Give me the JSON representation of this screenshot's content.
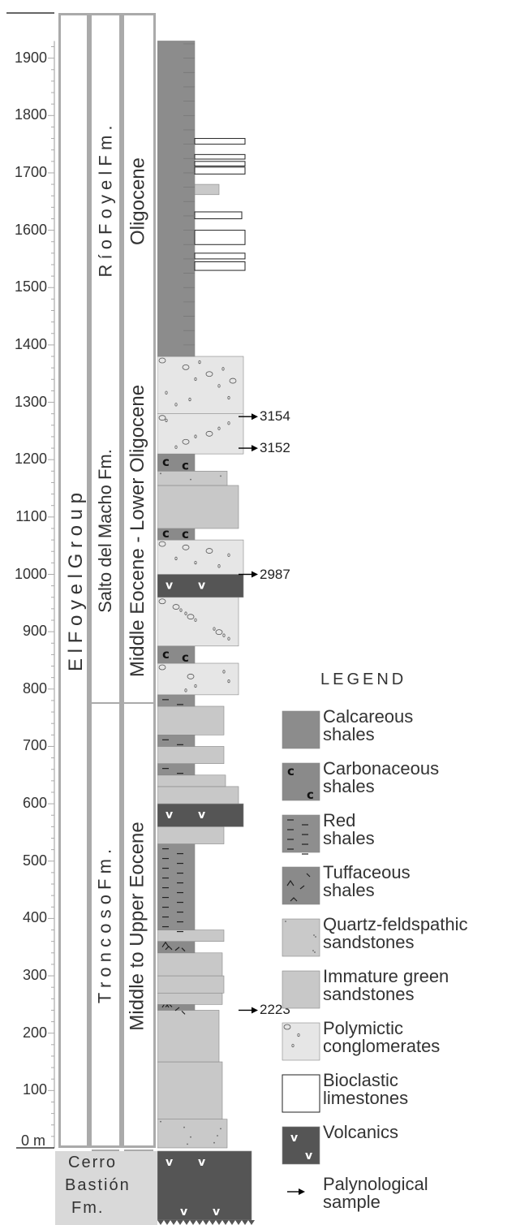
{
  "scale": {
    "ticks": [
      "1900",
      "1800",
      "1700",
      "1600",
      "1500",
      "1400",
      "1300",
      "1200",
      "1100",
      "1000",
      "900",
      "800",
      "700",
      "600",
      "500",
      "400",
      "300",
      "200",
      "100",
      "0 m"
    ]
  },
  "columns": {
    "group": "E l   F o y e l   G r o u p",
    "formations": [
      {
        "name": "R í o   F o y e l   F m .",
        "from": 1380,
        "to": 1930
      },
      {
        "name": "Salto del Macho Fm.",
        "from": 780,
        "to": 1380
      },
      {
        "name": "T r o n c o s o   F m .",
        "from": 0,
        "to": 780
      }
    ],
    "ages": [
      {
        "name": "Oligocene",
        "from": 1380,
        "to": 1930
      },
      {
        "name": "Middle Eocene - Lower Oligocene",
        "from": 780,
        "to": 1380
      },
      {
        "name": "Middle to Upper Eocene",
        "from": 0,
        "to": 780
      }
    ]
  },
  "basement": {
    "name_lines": [
      "Cerro",
      "Bastión",
      "Fm."
    ]
  },
  "samples": [
    {
      "id": "3154",
      "level": 1275
    },
    {
      "id": "3152",
      "level": 1220
    },
    {
      "id": "2987",
      "level": 1000
    },
    {
      "id": "2223",
      "level": 240
    }
  ],
  "legend": {
    "title": "LEGEND",
    "items": [
      {
        "key": "calcareous",
        "label_lines": [
          "Calcareous",
          "shales"
        ]
      },
      {
        "key": "carbonaceous",
        "label_lines": [
          "Carbonaceous",
          "shales"
        ]
      },
      {
        "key": "red",
        "label_lines": [
          "Red",
          "shales"
        ]
      },
      {
        "key": "tuffaceous",
        "label_lines": [
          "Tuffaceous",
          "shales"
        ]
      },
      {
        "key": "quartz",
        "label_lines": [
          "Quartz-feldspathic",
          "sandstones"
        ]
      },
      {
        "key": "immature",
        "label_lines": [
          "Immature green",
          "sandstones"
        ]
      },
      {
        "key": "polymictic",
        "label_lines": [
          "Polymictic",
          "conglomerates"
        ]
      },
      {
        "key": "bioclastic",
        "label_lines": [
          "Bioclastic",
          "limestones"
        ]
      },
      {
        "key": "volcanics",
        "label_lines": [
          "Volcanics"
        ]
      },
      {
        "key": "sample",
        "label_lines": [
          "Palynological",
          "sample"
        ]
      }
    ]
  },
  "colors": {
    "calcareous": "#8c8c8c",
    "carbonaceous": "#8a8a8a",
    "red": "#8e8e8e",
    "tuffaceous": "#8a8a8a",
    "quartz": "#c9c9c9",
    "immature": "#c8c8c8",
    "polymictic": "#e6e6e6",
    "bioclastic": "#ffffff",
    "volcanics": "#555555",
    "column_border": "#999999",
    "basement_box": "#d9d9d9"
  }
}
